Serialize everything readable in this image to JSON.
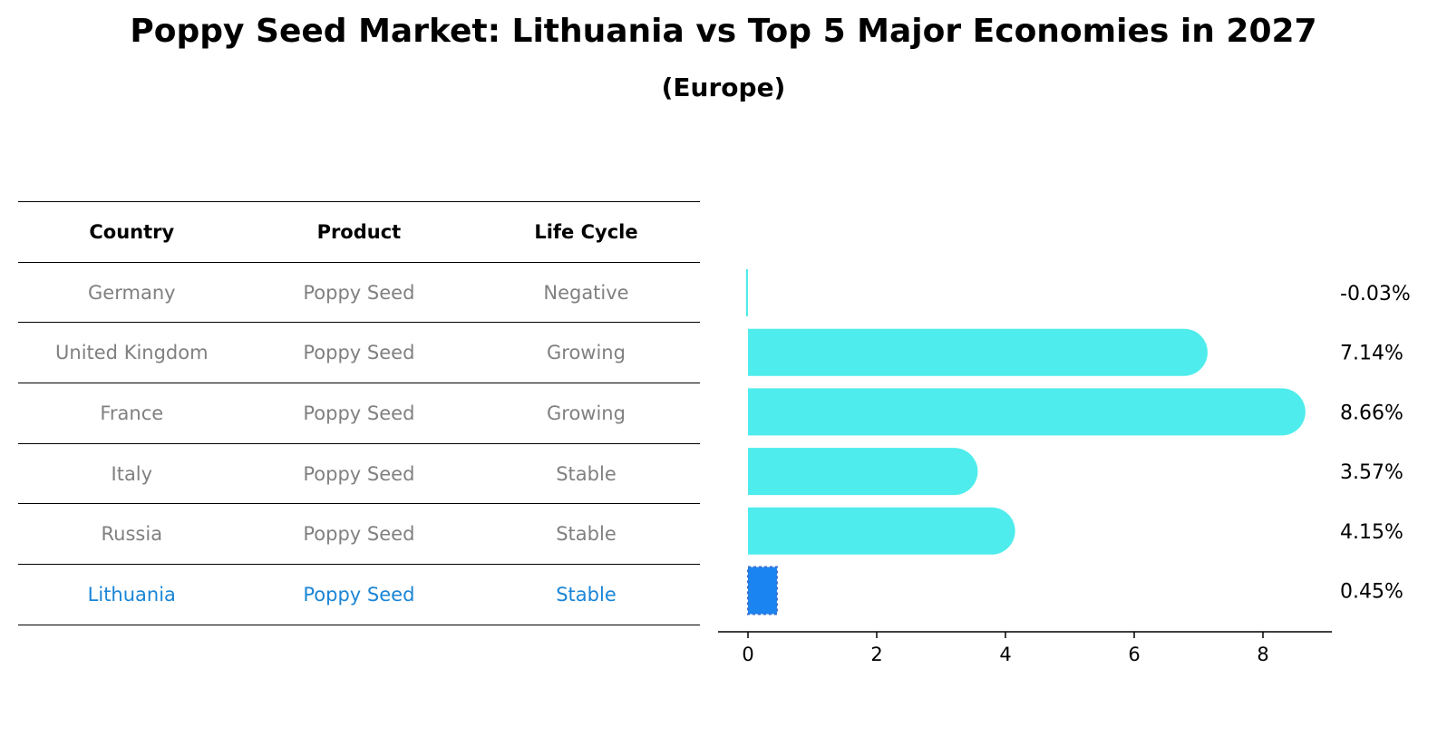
{
  "title": "Poppy Seed Market: Lithuania vs Top 5 Major Economies in 2027",
  "subtitle": "(Europe)",
  "table": {
    "headers": [
      "Country",
      "Product",
      "Life Cycle"
    ],
    "rows": [
      {
        "country": "Germany",
        "product": "Poppy Seed",
        "life_cycle": "Negative"
      },
      {
        "country": "United Kingdom",
        "product": "Poppy Seed",
        "life_cycle": "Growing"
      },
      {
        "country": "France",
        "product": "Poppy Seed",
        "life_cycle": "Growing"
      },
      {
        "country": "Italy",
        "product": "Poppy Seed",
        "life_cycle": "Stable"
      },
      {
        "country": "Russia",
        "product": "Poppy Seed",
        "life_cycle": "Stable"
      },
      {
        "country": "Lithuania",
        "product": "Poppy Seed",
        "life_cycle": "Stable"
      }
    ]
  },
  "chart_data": {
    "type": "bar",
    "orientation": "horizontal",
    "categories": [
      "Germany",
      "United Kingdom",
      "France",
      "Italy",
      "Russia",
      "Lithuania"
    ],
    "values": [
      -0.03,
      7.14,
      8.66,
      3.57,
      4.15,
      0.45
    ],
    "value_labels": [
      "-0.03%",
      "7.14%",
      "8.66%",
      "3.57%",
      "4.15%",
      "0.45%"
    ],
    "xticks": [
      0,
      2,
      4,
      6,
      8
    ],
    "xlim": [
      -0.47,
      9.05
    ],
    "highlight": "Lithuania",
    "colors": {
      "default": "#4eecec",
      "highlight": "#1a85f0",
      "highlight_text": "#1a85d6"
    }
  }
}
